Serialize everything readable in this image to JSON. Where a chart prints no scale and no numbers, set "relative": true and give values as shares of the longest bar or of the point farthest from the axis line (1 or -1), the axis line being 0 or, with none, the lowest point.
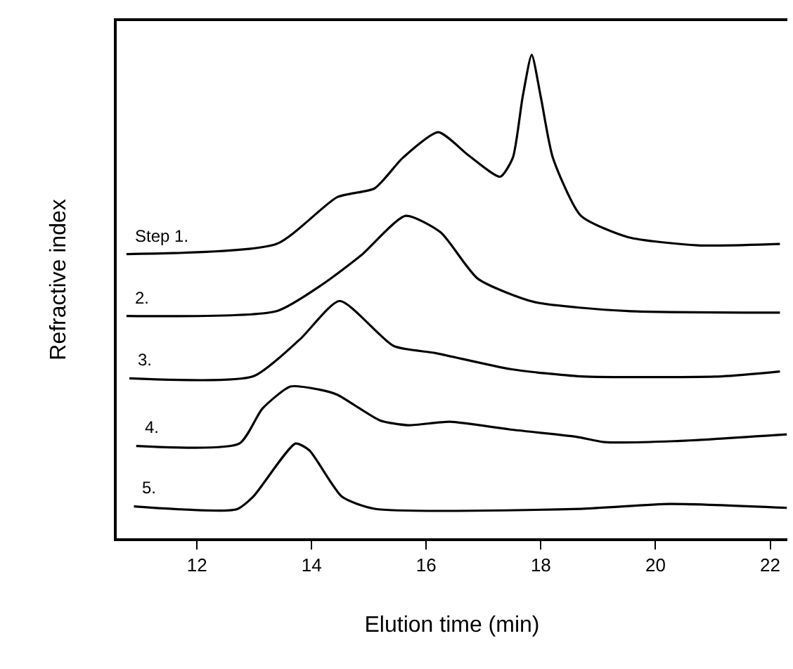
{
  "chart_data": {
    "type": "line",
    "relative": true,
    "xlabel": "Elution time (min)",
    "ylabel": "Refractive index",
    "xlim": [
      10.6,
      22.3
    ],
    "xticks": [
      12,
      14,
      16,
      18,
      20,
      22
    ],
    "legend": false,
    "marker": "none",
    "line_style": "solid",
    "series": [
      {
        "name": "Step 1.",
        "color": "#000000",
        "x": [
          10.77,
          13.39,
          14.45,
          15.1,
          15.59,
          16.21,
          16.74,
          17.29,
          17.51,
          17.68,
          17.84,
          18.0,
          18.21,
          18.7,
          19.52,
          20.74,
          22.17
        ],
        "values": [
          0.588,
          0.609,
          0.706,
          0.724,
          0.787,
          0.84,
          0.792,
          0.748,
          0.787,
          0.912,
          1.0,
          0.912,
          0.787,
          0.667,
          0.623,
          0.606,
          0.609
        ]
      },
      {
        "name": "2.",
        "color": "#000000",
        "x": [
          10.77,
          13.39,
          14.21,
          14.86,
          15.64,
          16.25,
          16.9,
          17.88,
          19.52,
          22.17
        ],
        "values": [
          0.46,
          0.47,
          0.527,
          0.585,
          0.667,
          0.633,
          0.537,
          0.489,
          0.47,
          0.467
        ]
      },
      {
        "name": "3.",
        "color": "#000000",
        "x": [
          10.82,
          12.98,
          13.8,
          14.49,
          15.43,
          16.17,
          17.47,
          18.7,
          21.15,
          22.17
        ],
        "values": [
          0.331,
          0.335,
          0.412,
          0.491,
          0.398,
          0.383,
          0.35,
          0.335,
          0.335,
          0.345
        ]
      },
      {
        "name": "4.",
        "color": "#000000",
        "x": [
          10.94,
          12.74,
          13.14,
          13.63,
          14.12,
          14.45,
          15.19,
          15.68,
          16.41,
          17.47,
          18.62,
          19.11,
          20.33,
          22.29
        ],
        "values": [
          0.191,
          0.196,
          0.268,
          0.314,
          0.308,
          0.297,
          0.244,
          0.234,
          0.241,
          0.225,
          0.21,
          0.199,
          0.201,
          0.215
        ]
      },
      {
        "name": "5.",
        "color": "#000000",
        "x": [
          10.9,
          12.69,
          12.98,
          13.72,
          13.96,
          14.53,
          15.1,
          18.7,
          20.25,
          22.29
        ],
        "values": [
          0.066,
          0.06,
          0.086,
          0.196,
          0.182,
          0.086,
          0.061,
          0.061,
          0.071,
          0.063
        ]
      }
    ]
  }
}
